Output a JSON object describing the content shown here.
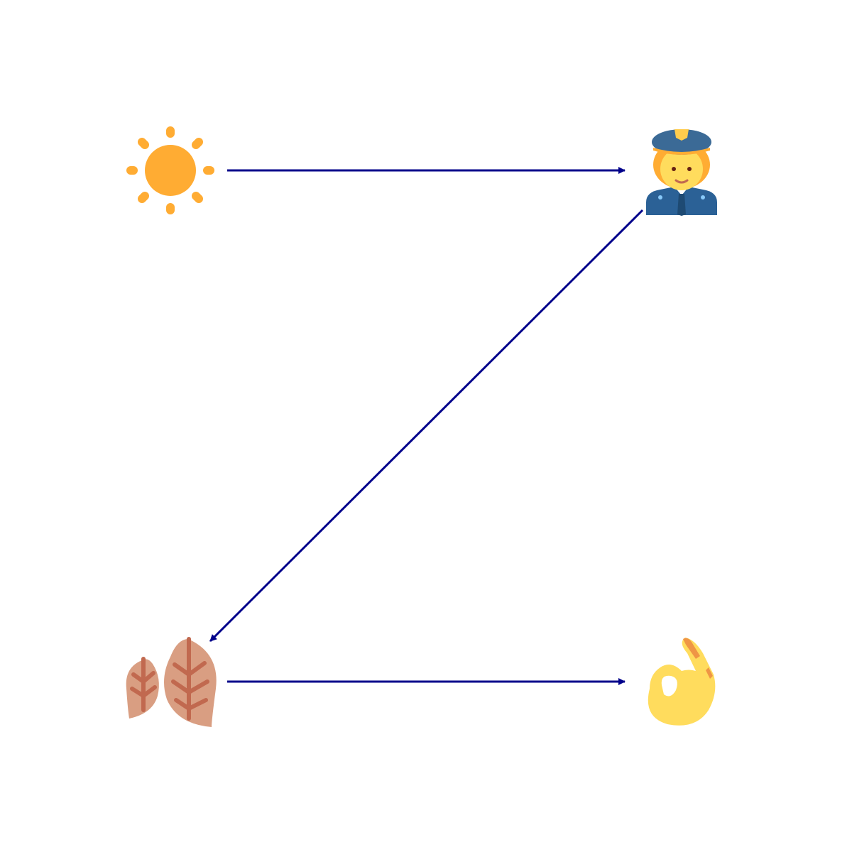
{
  "diagram": {
    "nodes": [
      {
        "id": "sun",
        "icon": "sun-icon"
      },
      {
        "id": "police",
        "icon": "police-officer-icon"
      },
      {
        "id": "lungs",
        "icon": "lungs-icon"
      },
      {
        "id": "ok",
        "icon": "ok-hand-icon"
      }
    ],
    "edges": [
      {
        "from": "sun",
        "to": "police"
      },
      {
        "from": "police",
        "to": "lungs"
      },
      {
        "from": "lungs",
        "to": "ok"
      }
    ],
    "colors": {
      "arrow": "#00008B",
      "sun": "#FFAC33",
      "skin": "#FFDC5D",
      "cap": "#3B6A96",
      "uniform": "#2B6196",
      "lung": "#D99E82",
      "lung_vein": "#C1694F",
      "hand": "#FFDC5D",
      "hand_shade": "#EF9645"
    }
  }
}
